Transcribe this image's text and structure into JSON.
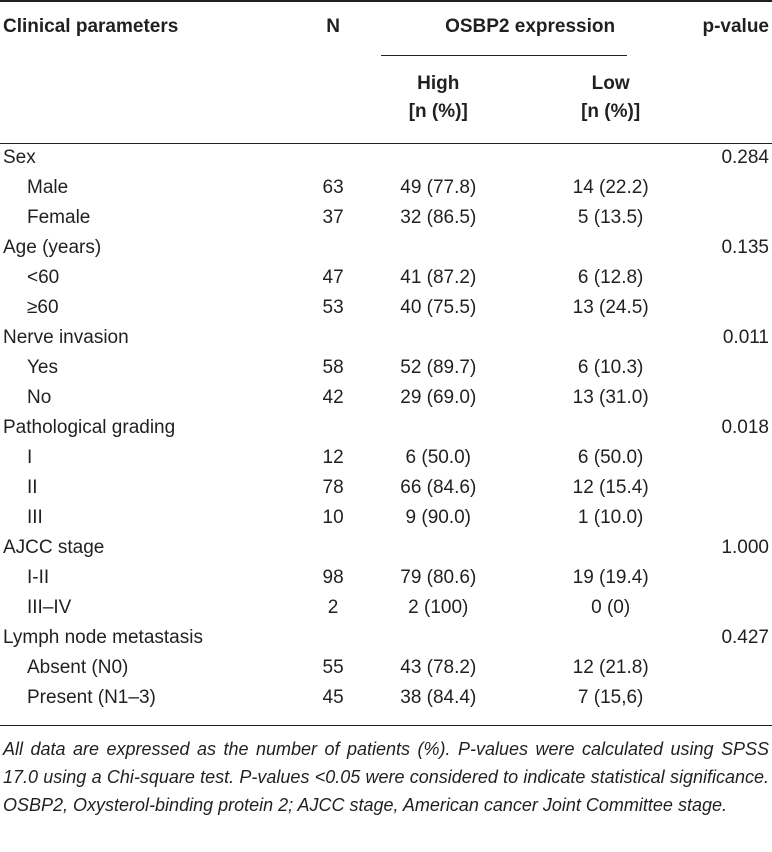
{
  "header": {
    "clinical_parameters": "Clinical parameters",
    "n": "N",
    "osbp2_expression": "OSBP2 expression",
    "p_value": "p-value",
    "high_line1": "High",
    "high_line2": "[n (%)]",
    "low_line1": "Low",
    "low_line2": "[n (%)]"
  },
  "rows": [
    {
      "param": "Sex",
      "n": "",
      "high": "",
      "low": "",
      "p": "0.284"
    },
    {
      "param": "Male",
      "n": "63",
      "high": "49 (77.8)",
      "low": "14 (22.2)",
      "p": ""
    },
    {
      "param": "Female",
      "n": "37",
      "high": "32 (86.5)",
      "low": "5 (13.5)",
      "p": ""
    },
    {
      "param": "Age (years)",
      "n": "",
      "high": "",
      "low": "",
      "p": "0.135"
    },
    {
      "param": "<60",
      "n": "47",
      "high": "41 (87.2)",
      "low": "6 (12.8)",
      "p": ""
    },
    {
      "param": "≥60",
      "n": "53",
      "high": "40 (75.5)",
      "low": "13 (24.5)",
      "p": ""
    },
    {
      "param": "Nerve invasion",
      "n": "",
      "high": "",
      "low": "",
      "p": "0.011"
    },
    {
      "param": "Yes",
      "n": "58",
      "high": "52 (89.7)",
      "low": "6 (10.3)",
      "p": ""
    },
    {
      "param": "No",
      "n": "42",
      "high": "29 (69.0)",
      "low": "13 (31.0)",
      "p": ""
    },
    {
      "param": "Pathological grading",
      "n": "",
      "high": "",
      "low": "",
      "p": "0.018"
    },
    {
      "param": "I",
      "n": "12",
      "high": "6 (50.0)",
      "low": "6 (50.0)",
      "p": ""
    },
    {
      "param": "II",
      "n": "78",
      "high": "66 (84.6)",
      "low": "12 (15.4)",
      "p": ""
    },
    {
      "param": "III",
      "n": "10",
      "high": "9 (90.0)",
      "low": "1 (10.0)",
      "p": ""
    },
    {
      "param": "AJCC stage",
      "n": "",
      "high": "",
      "low": "",
      "p": "1.000"
    },
    {
      "param": "I-II",
      "n": "98",
      "high": "79 (80.6)",
      "low": "19 (19.4)",
      "p": ""
    },
    {
      "param": "III–IV",
      "n": "2",
      "high": "2 (100)",
      "low": "0 (0)",
      "p": ""
    },
    {
      "param": "Lymph node metastasis",
      "n": "",
      "high": "",
      "low": "",
      "p": "0.427"
    },
    {
      "param": "Absent (N0)",
      "n": "55",
      "high": "43 (78.2)",
      "low": "12 (21.8)",
      "p": ""
    },
    {
      "param": "Present (N1–3)",
      "n": "45",
      "high": "38 (84.4)",
      "low": "7 (15,6)",
      "p": ""
    }
  ],
  "footnote": "All data are expressed as the number of patients (%). P-values were calculated using SPSS 17.0 using a Chi-square test. P-values <0.05 were considered to indicate statistical significance. OSBP2, Oxysterol-binding protein 2; AJCC stage, American cancer Joint Committee stage."
}
